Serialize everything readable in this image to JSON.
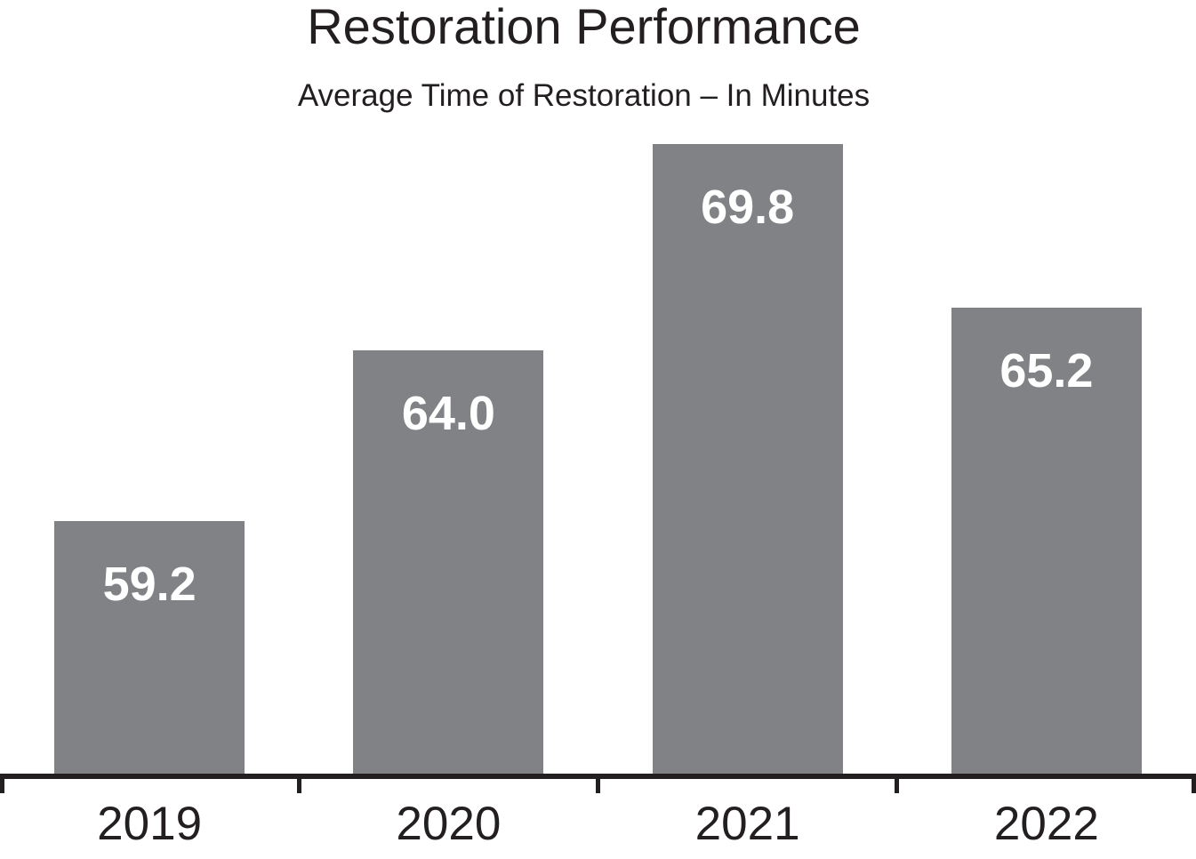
{
  "chart_data": {
    "type": "bar",
    "title": "Restoration Performance",
    "subtitle": "Average Time of Restoration – In Minutes",
    "categories": [
      "2019",
      "2020",
      "2021",
      "2022"
    ],
    "values": [
      59.2,
      64.0,
      69.8,
      65.2
    ],
    "value_labels": [
      "59.2",
      "64.0",
      "69.8",
      "65.2"
    ],
    "xlabel": "",
    "ylabel": "",
    "ylim": [
      52.1,
      72.1
    ],
    "grid": false,
    "legend": false,
    "value_labels_position": "inside-top",
    "bar_color": "#808285",
    "value_label_color": "#ffffff",
    "text_color": "#231f20",
    "axis_color": "#231f20",
    "background_color": "#ffffff"
  }
}
